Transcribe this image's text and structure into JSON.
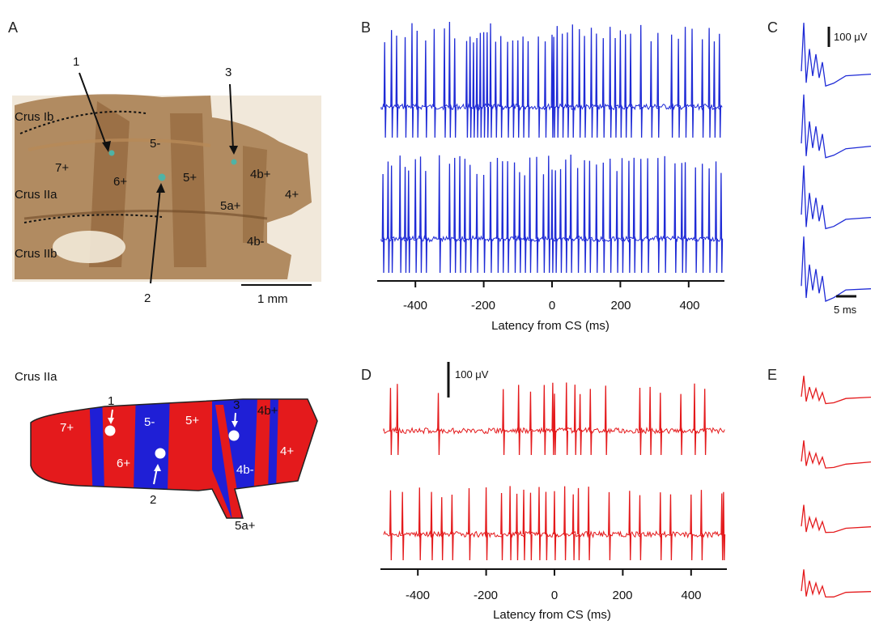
{
  "panels": {
    "A": {
      "label": "A",
      "crus_ib": "Crus Ib",
      "crus_iia": "Crus IIa",
      "crus_iib": "Crus IIb",
      "zones": [
        "7+",
        "6+",
        "5-",
        "5+",
        "4b+",
        "4+",
        "5a+",
        "4b-"
      ],
      "markers": [
        "1",
        "2",
        "3"
      ],
      "scale": "1 mm"
    },
    "schematic": {
      "title": "Crus IIa",
      "zones": [
        "7+",
        "6+",
        "5-",
        "5+",
        "4b+",
        "4+",
        "4b-",
        "5a+"
      ],
      "markers": [
        "1",
        "2",
        "3"
      ],
      "colors": {
        "positive": "#e41a1c",
        "negative": "#1f1fd6"
      }
    },
    "B": {
      "label": "B",
      "trace_color": "#1f2bd6"
    },
    "C": {
      "label": "C",
      "scale_v": "100 μV",
      "scale_t": "5 ms"
    },
    "D": {
      "label": "D",
      "scale_v": "100 μV",
      "trace_color": "#e41a1c"
    },
    "E": {
      "label": "E"
    }
  },
  "axes": {
    "xlabel": "Latency from CS (ms)",
    "ticks": [
      -400,
      -200,
      0,
      200,
      400
    ],
    "xlim": [
      -500,
      500
    ]
  },
  "chart_data": [
    {
      "type": "line",
      "panel": "B",
      "xlabel": "Latency from CS (ms)",
      "xlim": [
        -500,
        500
      ],
      "series": [
        {
          "spikes_ms": [
            -490,
            -470,
            -455,
            -430,
            -410,
            -395,
            -370,
            -345,
            -315,
            -300,
            -285,
            -250,
            -240,
            -230,
            -220,
            -210,
            -200,
            -190,
            -180,
            -165,
            -150,
            -130,
            -115,
            -100,
            -85,
            -70,
            -40,
            -20,
            0,
            5,
            15,
            30,
            45,
            60,
            80,
            95,
            115,
            130,
            150,
            170,
            185,
            200,
            215,
            230,
            260,
            290,
            310,
            350,
            370,
            390,
            410,
            440,
            460,
            475,
            490
          ]
        },
        {
          "spikes_ms": [
            -495,
            -480,
            -470,
            -445,
            -430,
            -420,
            -400,
            -385,
            -370,
            -330,
            -300,
            -285,
            -270,
            -255,
            -240,
            -220,
            -200,
            -180,
            -160,
            -145,
            -130,
            -110,
            -95,
            -80,
            -65,
            -45,
            -25,
            -10,
            0,
            10,
            25,
            40,
            55,
            75,
            95,
            110,
            130,
            150,
            170,
            190,
            205,
            225,
            240,
            260,
            280,
            310,
            330,
            360,
            380,
            390,
            420,
            440,
            460,
            480,
            495
          ]
        }
      ]
    },
    {
      "type": "line",
      "panel": "D",
      "xlabel": "Latency from CS (ms)",
      "xlim": [
        -500,
        500
      ],
      "series": [
        {
          "spikes_ms": [
            -480,
            -460,
            -340,
            -150,
            -105,
            -70,
            -30,
            -5,
            0,
            35,
            60,
            75,
            105,
            150,
            250,
            280,
            310,
            370,
            410,
            440
          ]
        },
        {
          "spikes_ms": [
            -480,
            -445,
            -395,
            -360,
            -330,
            -300,
            -250,
            -200,
            -155,
            -130,
            -110,
            -90,
            -70,
            -45,
            -25,
            0,
            30,
            55,
            70,
            100,
            160,
            220,
            250,
            310,
            340,
            400,
            430,
            490,
            495
          ]
        }
      ]
    }
  ]
}
